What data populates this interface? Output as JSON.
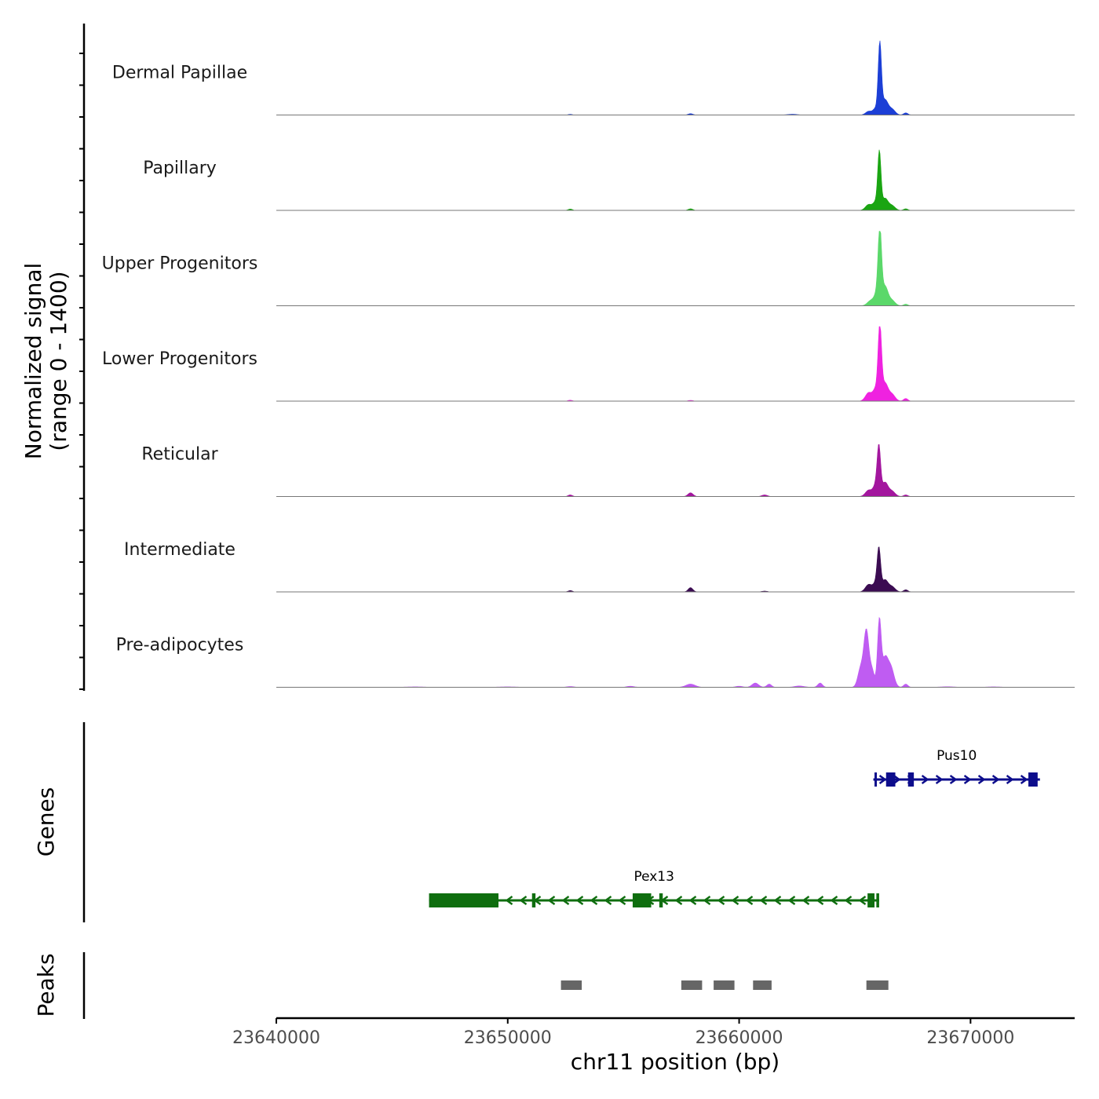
{
  "chart_data": {
    "type": "area",
    "title": "",
    "ylabel_line1": "Normalized signal",
    "ylabel_line2": "(range 0 - 1400)",
    "y_range": [
      0,
      1400
    ],
    "xlabel": "chr11 position (bp)",
    "xlim": [
      23640000,
      23674500
    ],
    "x_ticks": [
      23640000,
      23650000,
      23660000,
      23670000
    ],
    "x_tick_labels": [
      "23640000",
      "23650000",
      "23660000",
      "23670000"
    ],
    "tracks": [
      {
        "name": "Dermal Papillae",
        "color": "#1c3fd6",
        "peaks": [
          {
            "x": 23652700,
            "h": 12,
            "w": 90
          },
          {
            "x": 23657900,
            "h": 25,
            "w": 100
          },
          {
            "x": 23662300,
            "h": 14,
            "w": 200
          },
          {
            "x": 23665600,
            "h": 70,
            "w": 130
          },
          {
            "x": 23665900,
            "h": 120,
            "w": 110
          },
          {
            "x": 23666080,
            "h": 1300,
            "w": 70
          },
          {
            "x": 23666300,
            "h": 280,
            "w": 130
          },
          {
            "x": 23666600,
            "h": 110,
            "w": 140
          },
          {
            "x": 23667200,
            "h": 40,
            "w": 90
          }
        ]
      },
      {
        "name": "Papillary",
        "color": "#1aa512",
        "peaks": [
          {
            "x": 23652700,
            "h": 25,
            "w": 90
          },
          {
            "x": 23657900,
            "h": 30,
            "w": 100
          },
          {
            "x": 23665600,
            "h": 110,
            "w": 140
          },
          {
            "x": 23665900,
            "h": 150,
            "w": 110
          },
          {
            "x": 23666060,
            "h": 1050,
            "w": 70
          },
          {
            "x": 23666300,
            "h": 220,
            "w": 130
          },
          {
            "x": 23666600,
            "h": 90,
            "w": 140
          },
          {
            "x": 23667200,
            "h": 30,
            "w": 90
          }
        ]
      },
      {
        "name": "Upper Progenitors",
        "color": "#5bd86a",
        "peaks": [
          {
            "x": 23665700,
            "h": 100,
            "w": 150
          },
          {
            "x": 23665950,
            "h": 200,
            "w": 110
          },
          {
            "x": 23666080,
            "h": 1350,
            "w": 75
          },
          {
            "x": 23666300,
            "h": 360,
            "w": 130
          },
          {
            "x": 23666600,
            "h": 100,
            "w": 140
          },
          {
            "x": 23667200,
            "h": 30,
            "w": 90
          }
        ]
      },
      {
        "name": "Lower Progenitors",
        "color": "#ef22e0",
        "peaks": [
          {
            "x": 23652700,
            "h": 18,
            "w": 90
          },
          {
            "x": 23657900,
            "h": 15,
            "w": 100
          },
          {
            "x": 23665600,
            "h": 160,
            "w": 140
          },
          {
            "x": 23665900,
            "h": 220,
            "w": 110
          },
          {
            "x": 23666080,
            "h": 1350,
            "w": 75
          },
          {
            "x": 23666300,
            "h": 330,
            "w": 130
          },
          {
            "x": 23666600,
            "h": 130,
            "w": 140
          },
          {
            "x": 23667200,
            "h": 50,
            "w": 90
          }
        ]
      },
      {
        "name": "Reticular",
        "color": "#a3169e",
        "peaks": [
          {
            "x": 23652700,
            "h": 30,
            "w": 90
          },
          {
            "x": 23657900,
            "h": 70,
            "w": 110
          },
          {
            "x": 23661100,
            "h": 30,
            "w": 120
          },
          {
            "x": 23665600,
            "h": 120,
            "w": 140
          },
          {
            "x": 23665900,
            "h": 200,
            "w": 110
          },
          {
            "x": 23666040,
            "h": 870,
            "w": 75
          },
          {
            "x": 23666300,
            "h": 260,
            "w": 130
          },
          {
            "x": 23666600,
            "h": 100,
            "w": 140
          },
          {
            "x": 23667200,
            "h": 30,
            "w": 90
          }
        ]
      },
      {
        "name": "Intermediate",
        "color": "#3b0c52",
        "peaks": [
          {
            "x": 23652700,
            "h": 25,
            "w": 90
          },
          {
            "x": 23657900,
            "h": 80,
            "w": 100
          },
          {
            "x": 23661100,
            "h": 15,
            "w": 120
          },
          {
            "x": 23665600,
            "h": 140,
            "w": 140
          },
          {
            "x": 23665900,
            "h": 150,
            "w": 110
          },
          {
            "x": 23666040,
            "h": 760,
            "w": 75
          },
          {
            "x": 23666300,
            "h": 220,
            "w": 130
          },
          {
            "x": 23666600,
            "h": 100,
            "w": 140
          },
          {
            "x": 23667200,
            "h": 40,
            "w": 90
          }
        ]
      },
      {
        "name": "Pre-adipocytes",
        "color": "#bf5cf2",
        "peaks": [
          {
            "x": 23646000,
            "h": 8,
            "w": 400
          },
          {
            "x": 23650000,
            "h": 8,
            "w": 400
          },
          {
            "x": 23652700,
            "h": 15,
            "w": 150
          },
          {
            "x": 23655300,
            "h": 20,
            "w": 150
          },
          {
            "x": 23657900,
            "h": 60,
            "w": 200
          },
          {
            "x": 23660000,
            "h": 20,
            "w": 150
          },
          {
            "x": 23660700,
            "h": 80,
            "w": 140
          },
          {
            "x": 23661300,
            "h": 60,
            "w": 100
          },
          {
            "x": 23662600,
            "h": 25,
            "w": 200
          },
          {
            "x": 23663500,
            "h": 80,
            "w": 100
          },
          {
            "x": 23665250,
            "h": 350,
            "w": 120
          },
          {
            "x": 23665500,
            "h": 1050,
            "w": 110
          },
          {
            "x": 23665750,
            "h": 300,
            "w": 100
          },
          {
            "x": 23666060,
            "h": 1250,
            "w": 80
          },
          {
            "x": 23666300,
            "h": 500,
            "w": 120
          },
          {
            "x": 23666550,
            "h": 380,
            "w": 140
          },
          {
            "x": 23667200,
            "h": 60,
            "w": 90
          },
          {
            "x": 23669000,
            "h": 10,
            "w": 300
          },
          {
            "x": 23671000,
            "h": 8,
            "w": 300
          }
        ]
      }
    ],
    "genes_label": "Genes",
    "genes": [
      {
        "name": "Pus10",
        "strand": "+",
        "color": "#0d0d8c",
        "start": 23665800,
        "end": 23673000,
        "exons": [
          [
            23665850,
            23665950
          ],
          [
            23666350,
            23666750
          ],
          [
            23667300,
            23667550
          ],
          [
            23672500,
            23672900
          ]
        ]
      },
      {
        "name": "Pex13",
        "strand": "-",
        "color": "#0f6e0f",
        "start": 23646600,
        "end": 23666050,
        "exons": [
          [
            23646600,
            23649600
          ],
          [
            23651050,
            23651200
          ],
          [
            23655400,
            23656200
          ],
          [
            23656550,
            23656700
          ],
          [
            23665550,
            23665850
          ],
          [
            23665930,
            23666050
          ]
        ]
      }
    ],
    "peaks_label": "Peaks",
    "peak_regions": [
      [
        23652300,
        23653200
      ],
      [
        23657500,
        23658400
      ],
      [
        23658900,
        23659800
      ],
      [
        23660600,
        23661400
      ],
      [
        23665500,
        23666450
      ]
    ]
  }
}
